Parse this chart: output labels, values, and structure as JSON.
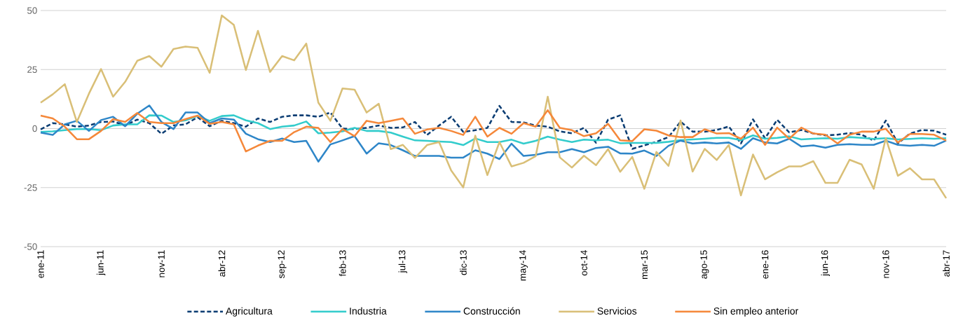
{
  "chart_data": {
    "type": "line",
    "x": [
      "2011-01",
      "2011-02",
      "2011-03",
      "2011-04",
      "2011-05",
      "2011-06",
      "2011-07",
      "2011-08",
      "2011-09",
      "2011-10",
      "2011-11",
      "2011-12",
      "2012-01",
      "2012-02",
      "2012-03",
      "2012-04",
      "2012-05",
      "2012-06",
      "2012-07",
      "2012-08",
      "2012-09",
      "2012-10",
      "2012-11",
      "2012-12",
      "2013-01",
      "2013-02",
      "2013-03",
      "2013-04",
      "2013-05",
      "2013-06",
      "2013-07",
      "2013-08",
      "2013-09",
      "2013-10",
      "2013-11",
      "2013-12",
      "2014-01",
      "2014-02",
      "2014-03",
      "2014-04",
      "2014-05",
      "2014-06",
      "2014-07",
      "2014-08",
      "2014-09",
      "2014-10",
      "2014-11",
      "2014-12",
      "2015-01",
      "2015-02",
      "2015-03",
      "2015-04",
      "2015-05",
      "2015-06",
      "2015-07",
      "2015-08",
      "2015-09",
      "2015-10",
      "2015-11",
      "2015-12",
      "2016-01",
      "2016-02",
      "2016-03",
      "2016-04",
      "2016-05",
      "2016-06",
      "2016-07",
      "2016-08",
      "2016-09",
      "2016-10",
      "2016-11",
      "2016-12",
      "2017-01",
      "2017-02",
      "2017-03",
      "2017-04"
    ],
    "series": [
      {
        "name": "Agricultura",
        "color": "#0b3d73",
        "line_style": "dashed",
        "values": [
          -0.3,
          2.3,
          1.8,
          0.8,
          1.3,
          2.8,
          3,
          1.3,
          3.8,
          2.3,
          -2.2,
          1.3,
          1.8,
          4.8,
          1,
          3.3,
          2.3,
          0.8,
          4.3,
          2.8,
          5,
          5.6,
          5.6,
          5,
          6.8,
          0,
          -0.2,
          0.3,
          1.3,
          0.3,
          0.5,
          2.8,
          -2.7,
          1.3,
          5,
          -1.4,
          -0.7,
          0.3,
          9.6,
          2.8,
          2.6,
          1.3,
          0.8,
          -1.2,
          -2,
          0.3,
          -6,
          3.8,
          5.6,
          -8.6,
          -7.1,
          -5.6,
          -3.6,
          2.9,
          -1.3,
          -1.3,
          -0.6,
          0.9,
          -6.3,
          3.9,
          -4.1,
          3.7,
          -1.6,
          -0.6,
          -2.1,
          -2.9,
          -2.6,
          -1.9,
          -2.6,
          -5.1,
          3.4,
          -6.3,
          -2.1,
          -0.6,
          -0.9,
          -2.6
        ]
      },
      {
        "name": "Industria",
        "color": "#33cccc",
        "line_style": "solid",
        "values": [
          -1.4,
          -1.2,
          -0.7,
          -0.2,
          -0.2,
          -0.7,
          1.3,
          1.8,
          1.8,
          5.6,
          5.5,
          2.8,
          3.5,
          5.3,
          3.3,
          5.3,
          5.6,
          3.5,
          2.3,
          -0.2,
          0.8,
          1.3,
          3,
          -2,
          -1.7,
          -1.2,
          0.3,
          -1,
          -1,
          -1.7,
          -3.4,
          -5,
          -5.2,
          -5.5,
          -5.7,
          -7,
          -4.2,
          -5.7,
          -5.7,
          -4.7,
          -6.4,
          -5.2,
          -3.4,
          -4.7,
          -5.7,
          -4.7,
          -5,
          -4.7,
          -6.2,
          -6.1,
          -6.1,
          -6.1,
          -5.6,
          -4.9,
          -4.6,
          -4.3,
          -3.9,
          -3.9,
          -4.9,
          -2.9,
          -4.3,
          -3.9,
          -3.3,
          -4.6,
          -4.3,
          -4.1,
          -4.3,
          -3.6,
          -3.9,
          -4.4,
          -4.1,
          -4.6,
          -4.4,
          -4.1,
          -4.3,
          -4.1
        ]
      },
      {
        "name": "Construcción",
        "color": "#2e86c8",
        "line_style": "solid",
        "values": [
          -1.7,
          -2.7,
          1.8,
          3.3,
          -1,
          3.6,
          5,
          1,
          6.3,
          9.8,
          2.8,
          -0.2,
          6.8,
          6.8,
          2.3,
          4.3,
          3.8,
          -2.2,
          -4.5,
          -5.7,
          -4.2,
          -5.7,
          -5.2,
          -14,
          -6.7,
          -5,
          -3.2,
          -10.6,
          -6.2,
          -7,
          -9.2,
          -11.6,
          -11.6,
          -11.6,
          -12.3,
          -12.3,
          -9.2,
          -10.6,
          -12.9,
          -6.4,
          -11.6,
          -11.1,
          -10,
          -10,
          -8.7,
          -10,
          -8.2,
          -7.7,
          -10.5,
          -10.6,
          -9.3,
          -11.6,
          -7.3,
          -5.1,
          -6.3,
          -5.9,
          -6.3,
          -5.9,
          -8.6,
          -4.1,
          -5.9,
          -6.3,
          -4.3,
          -7.6,
          -7.1,
          -8.1,
          -6.9,
          -6.6,
          -6.9,
          -6.9,
          -5.1,
          -6.9,
          -7.3,
          -6.9,
          -7.3,
          -5.1
        ]
      },
      {
        "name": "Servicios",
        "color": "#d9bf77",
        "line_style": "solid",
        "values": [
          11,
          14.5,
          18.8,
          2.8,
          14.8,
          25.2,
          13.5,
          19.8,
          28.7,
          30.7,
          26.2,
          33.7,
          34.7,
          34.2,
          23.6,
          47.9,
          43.9,
          24.8,
          41.4,
          24,
          30.7,
          28.9,
          36,
          11,
          3.3,
          17,
          16.5,
          6.8,
          10.5,
          -8.7,
          -6.9,
          -12.4,
          -7,
          -5.7,
          -17.7,
          -24.9,
          -3,
          -19.7,
          -5.7,
          -16,
          -14.5,
          -11.7,
          13.5,
          -12.2,
          -16.5,
          -11.5,
          -15.5,
          -8.7,
          -18.3,
          -12,
          -25.5,
          -9.9,
          -15.8,
          3.4,
          -18.2,
          -8.6,
          -13.3,
          -6.9,
          -28.3,
          -11,
          -21.5,
          -18.5,
          -16,
          -16,
          -13.8,
          -23,
          -23,
          -13.2,
          -15.2,
          -25.5,
          -4.1,
          -20,
          -16.8,
          -21.5,
          -21.5,
          -29.5
        ]
      },
      {
        "name": "Sin empleo anterior",
        "color": "#f5883a",
        "line_style": "solid",
        "values": [
          5.5,
          4.3,
          0.8,
          -4.5,
          -4.5,
          -1,
          4,
          2.8,
          6.6,
          2.8,
          2.3,
          2.3,
          4,
          5.5,
          2,
          2.8,
          1.8,
          -9.7,
          -7.2,
          -5.2,
          -5.2,
          -1.5,
          0.8,
          0.3,
          -5.7,
          -0.2,
          -3.2,
          3.3,
          2.3,
          3.3,
          4.3,
          -2.2,
          -0.4,
          0.3,
          -1,
          -2.7,
          5,
          -3.4,
          0.3,
          -2.2,
          2.3,
          0.8,
          7.8,
          0.3,
          -0.7,
          -3.2,
          -2,
          2,
          -5,
          -5.3,
          -0.3,
          -0.9,
          -2.9,
          -3.6,
          -3.6,
          -0.3,
          -2.1,
          -1.9,
          -4.3,
          0.4,
          -6.9,
          0.4,
          -4.3,
          0.4,
          -2.1,
          -2.6,
          -6.3,
          -2.6,
          -1.3,
          -1.3,
          -0.1,
          -5.9,
          -2.3,
          -2.3,
          -2.6,
          -5.1
        ]
      }
    ],
    "xlim": [
      "2011-01",
      "2017-04"
    ],
    "xticks": [
      {
        "value": "2011-01",
        "label": "ene-11"
      },
      {
        "value": "2011-06",
        "label": "jun-11"
      },
      {
        "value": "2011-11",
        "label": "nov-11"
      },
      {
        "value": "2012-04",
        "label": "abr-12"
      },
      {
        "value": "2012-09",
        "label": "sep-12"
      },
      {
        "value": "2013-02",
        "label": "feb-13"
      },
      {
        "value": "2013-07",
        "label": "jul-13"
      },
      {
        "value": "2013-12",
        "label": "dic-13"
      },
      {
        "value": "2014-05",
        "label": "may-14"
      },
      {
        "value": "2014-10",
        "label": "oct-14"
      },
      {
        "value": "2015-03",
        "label": "mar-15"
      },
      {
        "value": "2015-08",
        "label": "ago-15"
      },
      {
        "value": "2016-01",
        "label": "ene-16"
      },
      {
        "value": "2016-06",
        "label": "jun-16"
      },
      {
        "value": "2016-11",
        "label": "nov-16"
      },
      {
        "value": "2017-04",
        "label": "abr-17"
      }
    ],
    "ylim": [
      -50,
      50
    ],
    "yticks": [
      -50,
      -25,
      0,
      25,
      50
    ],
    "grid": "y",
    "legend": "bottom",
    "marker": "none"
  }
}
